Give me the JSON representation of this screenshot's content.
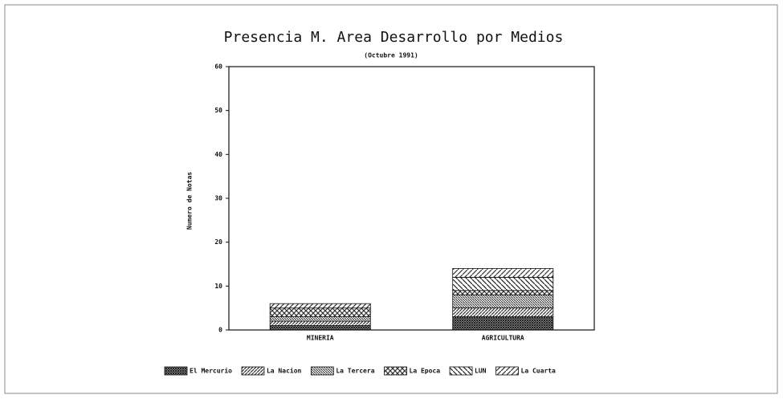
{
  "chart_data": {
    "type": "stacked_bar",
    "title": "Presencia M. Area Desarrollo por Medios",
    "subtitle": "(Octubre 1991)",
    "y_label": "Numero de Notas",
    "categories": [
      "MINERIA",
      "AGRICULTURA"
    ],
    "series": [
      {
        "name": "El Mercurio",
        "color": "#222222",
        "values": [
          1,
          3
        ]
      },
      {
        "name": "La Nacion",
        "color": "#333333",
        "values": [
          1,
          2
        ]
      },
      {
        "name": "La Tercera",
        "color": "#444444",
        "values": [
          1,
          3
        ]
      },
      {
        "name": "La Epoca",
        "color": "#333333",
        "values": [
          2,
          1
        ]
      },
      {
        "name": "LUN",
        "color": "#222222",
        "values": [
          0,
          3
        ]
      },
      {
        "name": "La Cuarta",
        "color": "#333333",
        "values": [
          1,
          2
        ]
      }
    ],
    "ylim": [
      0,
      60
    ],
    "yticks": [
      0,
      10,
      20,
      30,
      40,
      50,
      60
    ],
    "grid": false,
    "legend": "bottom"
  }
}
